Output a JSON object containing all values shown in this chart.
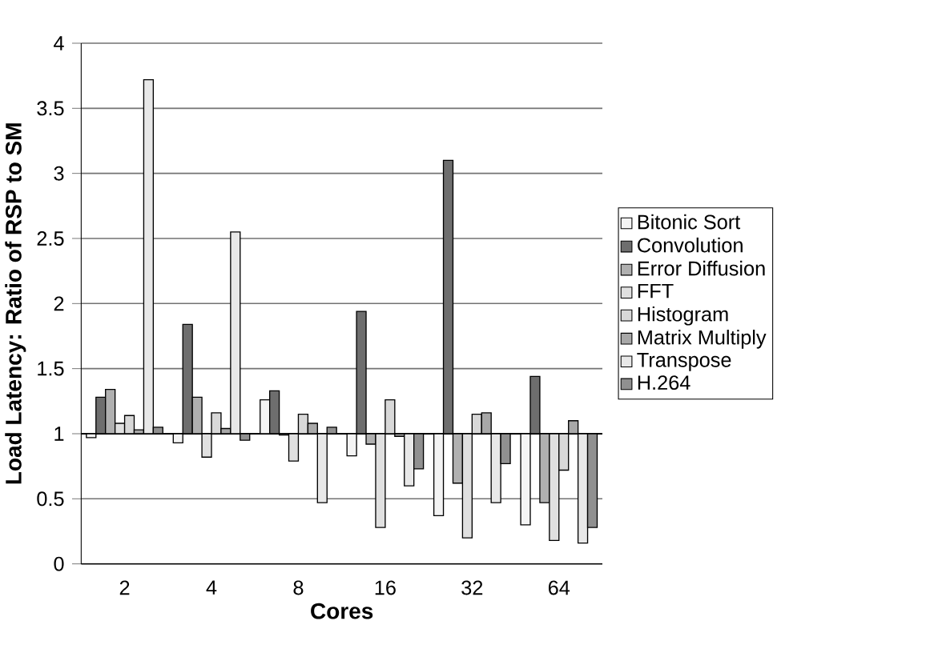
{
  "chart_data": {
    "type": "bar",
    "xlabel": "Cores",
    "ylabel": "Load Latency: Ratio of RSP to SM",
    "categories": [
      "2",
      "4",
      "8",
      "16",
      "32",
      "64"
    ],
    "series": [
      {
        "name": "Bitonic Sort",
        "color": "#f4f4f4",
        "base": [
          1,
          1,
          1,
          1,
          1,
          1
        ],
        "values": [
          -0.03,
          -0.07,
          0.26,
          -0.17,
          -0.63,
          -0.7
        ]
      },
      {
        "name": "Convolution",
        "color": "#6e6e6e",
        "base": [
          1,
          1,
          1,
          1,
          1,
          1
        ],
        "values": [
          0.28,
          0.84,
          0.33,
          0.94,
          2.1,
          0.44
        ]
      },
      {
        "name": "Error Diffusion",
        "color": "#b0b0b0",
        "base": [
          1,
          1,
          1,
          1,
          1,
          1
        ],
        "values": [
          0.34,
          0.28,
          -0.01,
          -0.08,
          -0.38,
          -0.53
        ]
      },
      {
        "name": "FFT",
        "color": "#e0e0e0",
        "base": [
          1,
          1,
          1,
          1,
          1,
          1
        ],
        "values": [
          0.08,
          -0.18,
          -0.21,
          -0.72,
          -0.8,
          -0.82
        ]
      },
      {
        "name": "Histogram",
        "color": "#d8d8d8",
        "base": [
          1,
          1,
          1,
          1,
          1,
          1
        ],
        "values": [
          0.14,
          0.16,
          0.15,
          0.26,
          0.15,
          -0.28
        ]
      },
      {
        "name": "Matrix Multiply",
        "color": "#a8a8a8",
        "base": [
          1,
          1,
          1,
          1,
          1,
          1
        ],
        "values": [
          0.03,
          0.04,
          0.08,
          -0.02,
          0.16,
          0.1
        ]
      },
      {
        "name": "Transpose",
        "color": "#e8e8e8",
        "base": [
          1,
          1,
          1,
          1,
          1,
          1
        ],
        "values": [
          2.72,
          1.55,
          -0.53,
          -0.4,
          -0.53,
          -0.84
        ]
      },
      {
        "name": "H.264",
        "color": "#909090",
        "base": [
          1,
          1,
          1,
          1,
          1,
          1
        ],
        "values": [
          0.05,
          -0.05,
          0.05,
          -0.27,
          -0.23,
          -0.72
        ]
      }
    ],
    "ylim": [
      0,
      4
    ],
    "yticks": [
      0,
      0.5,
      1,
      1.5,
      2,
      2.5,
      3,
      3.5,
      4
    ],
    "ref_lines": [
      {
        "axis": "y",
        "value": 1
      }
    ],
    "grid": "y",
    "legend": "right"
  }
}
